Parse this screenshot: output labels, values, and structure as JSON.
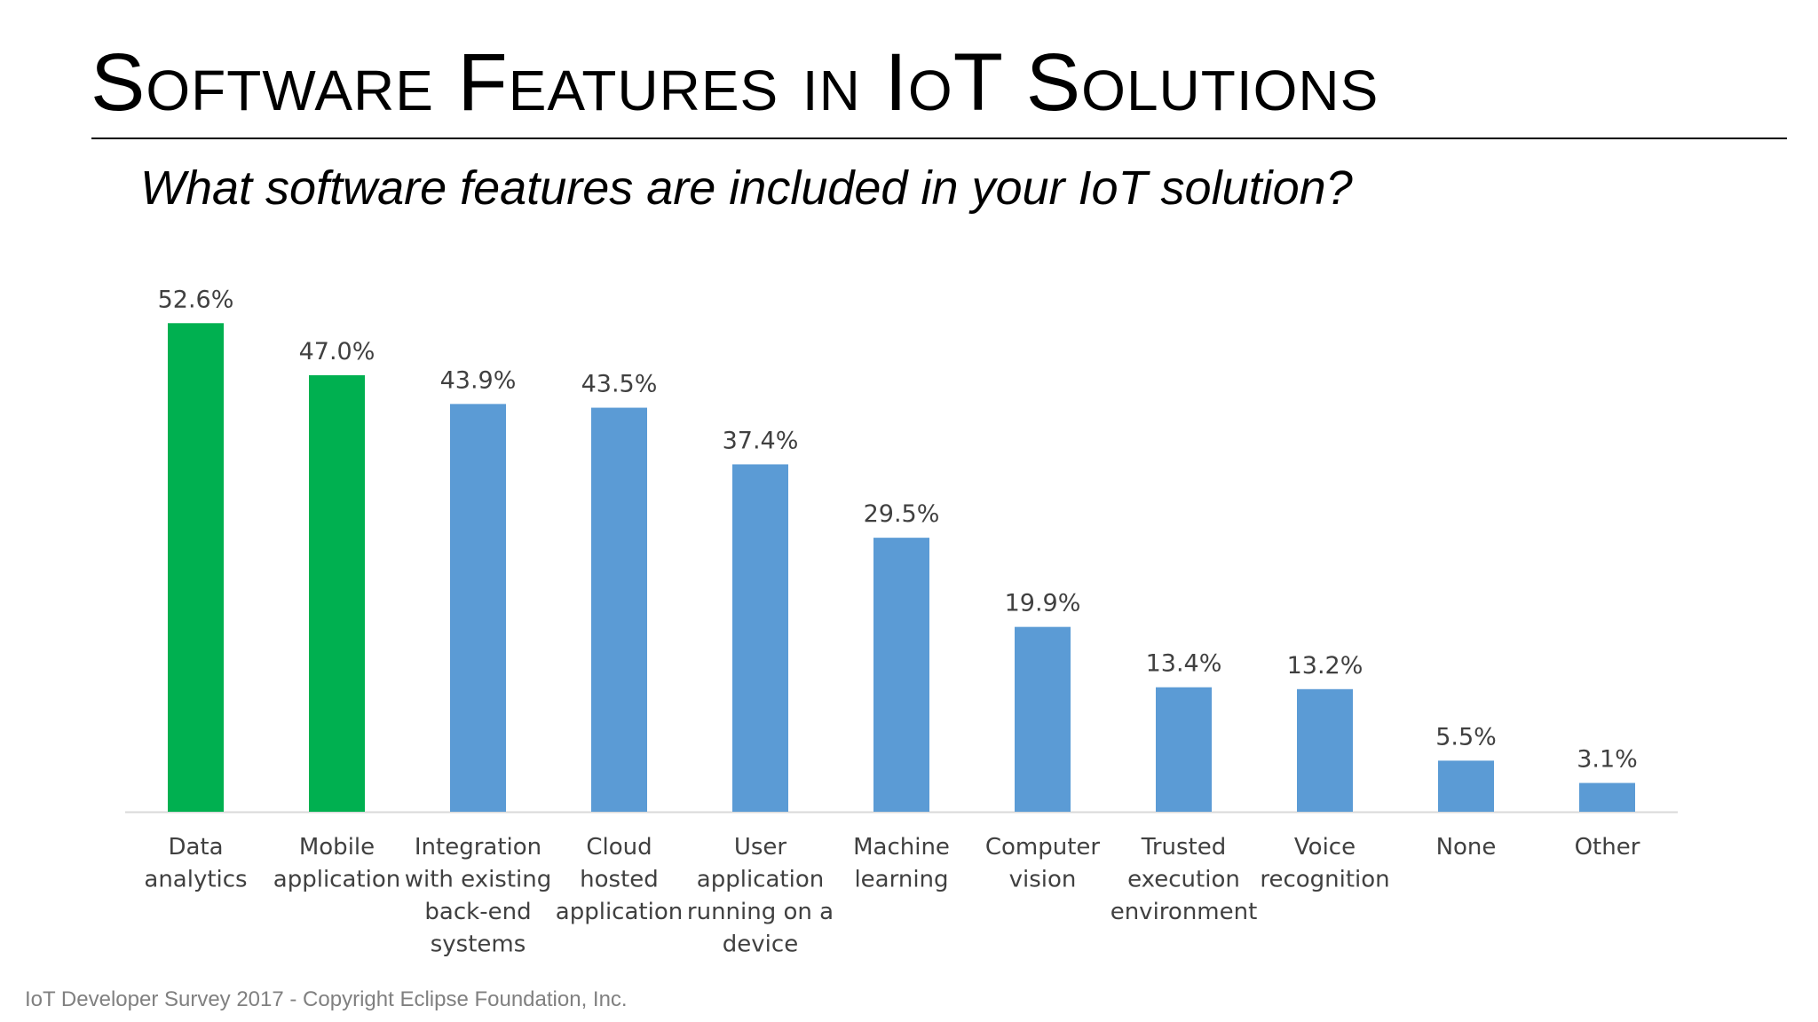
{
  "page": {
    "title": "Software Features in IoT Solutions",
    "subtitle": "What software features are included in your IoT solution?",
    "footer": "IoT Developer Survey 2017 - Copyright Eclipse Foundation, Inc."
  },
  "chart_data": {
    "type": "bar",
    "title": "",
    "xlabel": "",
    "ylabel": "",
    "ylim": [
      0,
      60
    ],
    "grid": false,
    "categories": [
      [
        "Data",
        "analytics"
      ],
      [
        "Mobile",
        "application"
      ],
      [
        "Integration",
        "with existing",
        "back-end",
        "systems"
      ],
      [
        "Cloud",
        "hosted",
        "application"
      ],
      [
        "User",
        "application",
        "running on a",
        "device"
      ],
      [
        "Machine",
        "learning"
      ],
      [
        "Computer",
        "vision"
      ],
      [
        "Trusted",
        "execution",
        "environment"
      ],
      [
        "Voice",
        "recognition"
      ],
      [
        "None"
      ],
      [
        "Other"
      ]
    ],
    "values": [
      52.6,
      47.0,
      43.9,
      43.5,
      37.4,
      29.5,
      19.9,
      13.4,
      13.2,
      5.5,
      3.1
    ],
    "data_labels": [
      "52.6%",
      "47.0%",
      "43.9%",
      "43.5%",
      "37.4%",
      "29.5%",
      "19.9%",
      "13.4%",
      "13.2%",
      "5.5%",
      "3.1%"
    ],
    "highlighted": [
      true,
      true,
      false,
      false,
      false,
      false,
      false,
      false,
      false,
      false,
      false
    ],
    "colors": {
      "highlight": "#00B050",
      "default": "#5B9BD5",
      "axis": "#D9D9D9",
      "label": "#404040"
    }
  }
}
